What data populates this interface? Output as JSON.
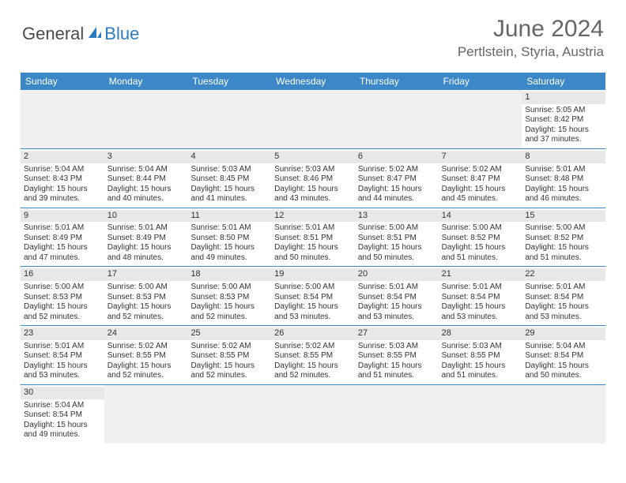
{
  "logo": {
    "text_dark": "General",
    "text_blue": "Blue",
    "icon_color": "#2a7bbf"
  },
  "title": "June 2024",
  "location": "Pertlstein, Styria, Austria",
  "day_headers": [
    "Sunday",
    "Monday",
    "Tuesday",
    "Wednesday",
    "Thursday",
    "Friday",
    "Saturday"
  ],
  "colors": {
    "header_bg": "#3b87c8",
    "header_text": "#ffffff",
    "daynum_bg": "#e8e8e8",
    "border": "#3b87c8",
    "empty_bg": "#f0f0f0",
    "title_color": "#666666",
    "text_color": "#333333"
  },
  "weeks": [
    [
      {
        "empty": true
      },
      {
        "empty": true
      },
      {
        "empty": true
      },
      {
        "empty": true
      },
      {
        "empty": true
      },
      {
        "empty": true
      },
      {
        "day": "1",
        "sunrise": "Sunrise: 5:05 AM",
        "sunset": "Sunset: 8:42 PM",
        "daylight1": "Daylight: 15 hours",
        "daylight2": "and 37 minutes."
      }
    ],
    [
      {
        "day": "2",
        "sunrise": "Sunrise: 5:04 AM",
        "sunset": "Sunset: 8:43 PM",
        "daylight1": "Daylight: 15 hours",
        "daylight2": "and 39 minutes."
      },
      {
        "day": "3",
        "sunrise": "Sunrise: 5:04 AM",
        "sunset": "Sunset: 8:44 PM",
        "daylight1": "Daylight: 15 hours",
        "daylight2": "and 40 minutes."
      },
      {
        "day": "4",
        "sunrise": "Sunrise: 5:03 AM",
        "sunset": "Sunset: 8:45 PM",
        "daylight1": "Daylight: 15 hours",
        "daylight2": "and 41 minutes."
      },
      {
        "day": "5",
        "sunrise": "Sunrise: 5:03 AM",
        "sunset": "Sunset: 8:46 PM",
        "daylight1": "Daylight: 15 hours",
        "daylight2": "and 43 minutes."
      },
      {
        "day": "6",
        "sunrise": "Sunrise: 5:02 AM",
        "sunset": "Sunset: 8:47 PM",
        "daylight1": "Daylight: 15 hours",
        "daylight2": "and 44 minutes."
      },
      {
        "day": "7",
        "sunrise": "Sunrise: 5:02 AM",
        "sunset": "Sunset: 8:47 PM",
        "daylight1": "Daylight: 15 hours",
        "daylight2": "and 45 minutes."
      },
      {
        "day": "8",
        "sunrise": "Sunrise: 5:01 AM",
        "sunset": "Sunset: 8:48 PM",
        "daylight1": "Daylight: 15 hours",
        "daylight2": "and 46 minutes."
      }
    ],
    [
      {
        "day": "9",
        "sunrise": "Sunrise: 5:01 AM",
        "sunset": "Sunset: 8:49 PM",
        "daylight1": "Daylight: 15 hours",
        "daylight2": "and 47 minutes."
      },
      {
        "day": "10",
        "sunrise": "Sunrise: 5:01 AM",
        "sunset": "Sunset: 8:49 PM",
        "daylight1": "Daylight: 15 hours",
        "daylight2": "and 48 minutes."
      },
      {
        "day": "11",
        "sunrise": "Sunrise: 5:01 AM",
        "sunset": "Sunset: 8:50 PM",
        "daylight1": "Daylight: 15 hours",
        "daylight2": "and 49 minutes."
      },
      {
        "day": "12",
        "sunrise": "Sunrise: 5:01 AM",
        "sunset": "Sunset: 8:51 PM",
        "daylight1": "Daylight: 15 hours",
        "daylight2": "and 50 minutes."
      },
      {
        "day": "13",
        "sunrise": "Sunrise: 5:00 AM",
        "sunset": "Sunset: 8:51 PM",
        "daylight1": "Daylight: 15 hours",
        "daylight2": "and 50 minutes."
      },
      {
        "day": "14",
        "sunrise": "Sunrise: 5:00 AM",
        "sunset": "Sunset: 8:52 PM",
        "daylight1": "Daylight: 15 hours",
        "daylight2": "and 51 minutes."
      },
      {
        "day": "15",
        "sunrise": "Sunrise: 5:00 AM",
        "sunset": "Sunset: 8:52 PM",
        "daylight1": "Daylight: 15 hours",
        "daylight2": "and 51 minutes."
      }
    ],
    [
      {
        "day": "16",
        "sunrise": "Sunrise: 5:00 AM",
        "sunset": "Sunset: 8:53 PM",
        "daylight1": "Daylight: 15 hours",
        "daylight2": "and 52 minutes."
      },
      {
        "day": "17",
        "sunrise": "Sunrise: 5:00 AM",
        "sunset": "Sunset: 8:53 PM",
        "daylight1": "Daylight: 15 hours",
        "daylight2": "and 52 minutes."
      },
      {
        "day": "18",
        "sunrise": "Sunrise: 5:00 AM",
        "sunset": "Sunset: 8:53 PM",
        "daylight1": "Daylight: 15 hours",
        "daylight2": "and 52 minutes."
      },
      {
        "day": "19",
        "sunrise": "Sunrise: 5:00 AM",
        "sunset": "Sunset: 8:54 PM",
        "daylight1": "Daylight: 15 hours",
        "daylight2": "and 53 minutes."
      },
      {
        "day": "20",
        "sunrise": "Sunrise: 5:01 AM",
        "sunset": "Sunset: 8:54 PM",
        "daylight1": "Daylight: 15 hours",
        "daylight2": "and 53 minutes."
      },
      {
        "day": "21",
        "sunrise": "Sunrise: 5:01 AM",
        "sunset": "Sunset: 8:54 PM",
        "daylight1": "Daylight: 15 hours",
        "daylight2": "and 53 minutes."
      },
      {
        "day": "22",
        "sunrise": "Sunrise: 5:01 AM",
        "sunset": "Sunset: 8:54 PM",
        "daylight1": "Daylight: 15 hours",
        "daylight2": "and 53 minutes."
      }
    ],
    [
      {
        "day": "23",
        "sunrise": "Sunrise: 5:01 AM",
        "sunset": "Sunset: 8:54 PM",
        "daylight1": "Daylight: 15 hours",
        "daylight2": "and 53 minutes."
      },
      {
        "day": "24",
        "sunrise": "Sunrise: 5:02 AM",
        "sunset": "Sunset: 8:55 PM",
        "daylight1": "Daylight: 15 hours",
        "daylight2": "and 52 minutes."
      },
      {
        "day": "25",
        "sunrise": "Sunrise: 5:02 AM",
        "sunset": "Sunset: 8:55 PM",
        "daylight1": "Daylight: 15 hours",
        "daylight2": "and 52 minutes."
      },
      {
        "day": "26",
        "sunrise": "Sunrise: 5:02 AM",
        "sunset": "Sunset: 8:55 PM",
        "daylight1": "Daylight: 15 hours",
        "daylight2": "and 52 minutes."
      },
      {
        "day": "27",
        "sunrise": "Sunrise: 5:03 AM",
        "sunset": "Sunset: 8:55 PM",
        "daylight1": "Daylight: 15 hours",
        "daylight2": "and 51 minutes."
      },
      {
        "day": "28",
        "sunrise": "Sunrise: 5:03 AM",
        "sunset": "Sunset: 8:55 PM",
        "daylight1": "Daylight: 15 hours",
        "daylight2": "and 51 minutes."
      },
      {
        "day": "29",
        "sunrise": "Sunrise: 5:04 AM",
        "sunset": "Sunset: 8:54 PM",
        "daylight1": "Daylight: 15 hours",
        "daylight2": "and 50 minutes."
      }
    ],
    [
      {
        "day": "30",
        "sunrise": "Sunrise: 5:04 AM",
        "sunset": "Sunset: 8:54 PM",
        "daylight1": "Daylight: 15 hours",
        "daylight2": "and 49 minutes."
      },
      {
        "empty": true
      },
      {
        "empty": true
      },
      {
        "empty": true
      },
      {
        "empty": true
      },
      {
        "empty": true
      },
      {
        "empty": true
      }
    ]
  ]
}
